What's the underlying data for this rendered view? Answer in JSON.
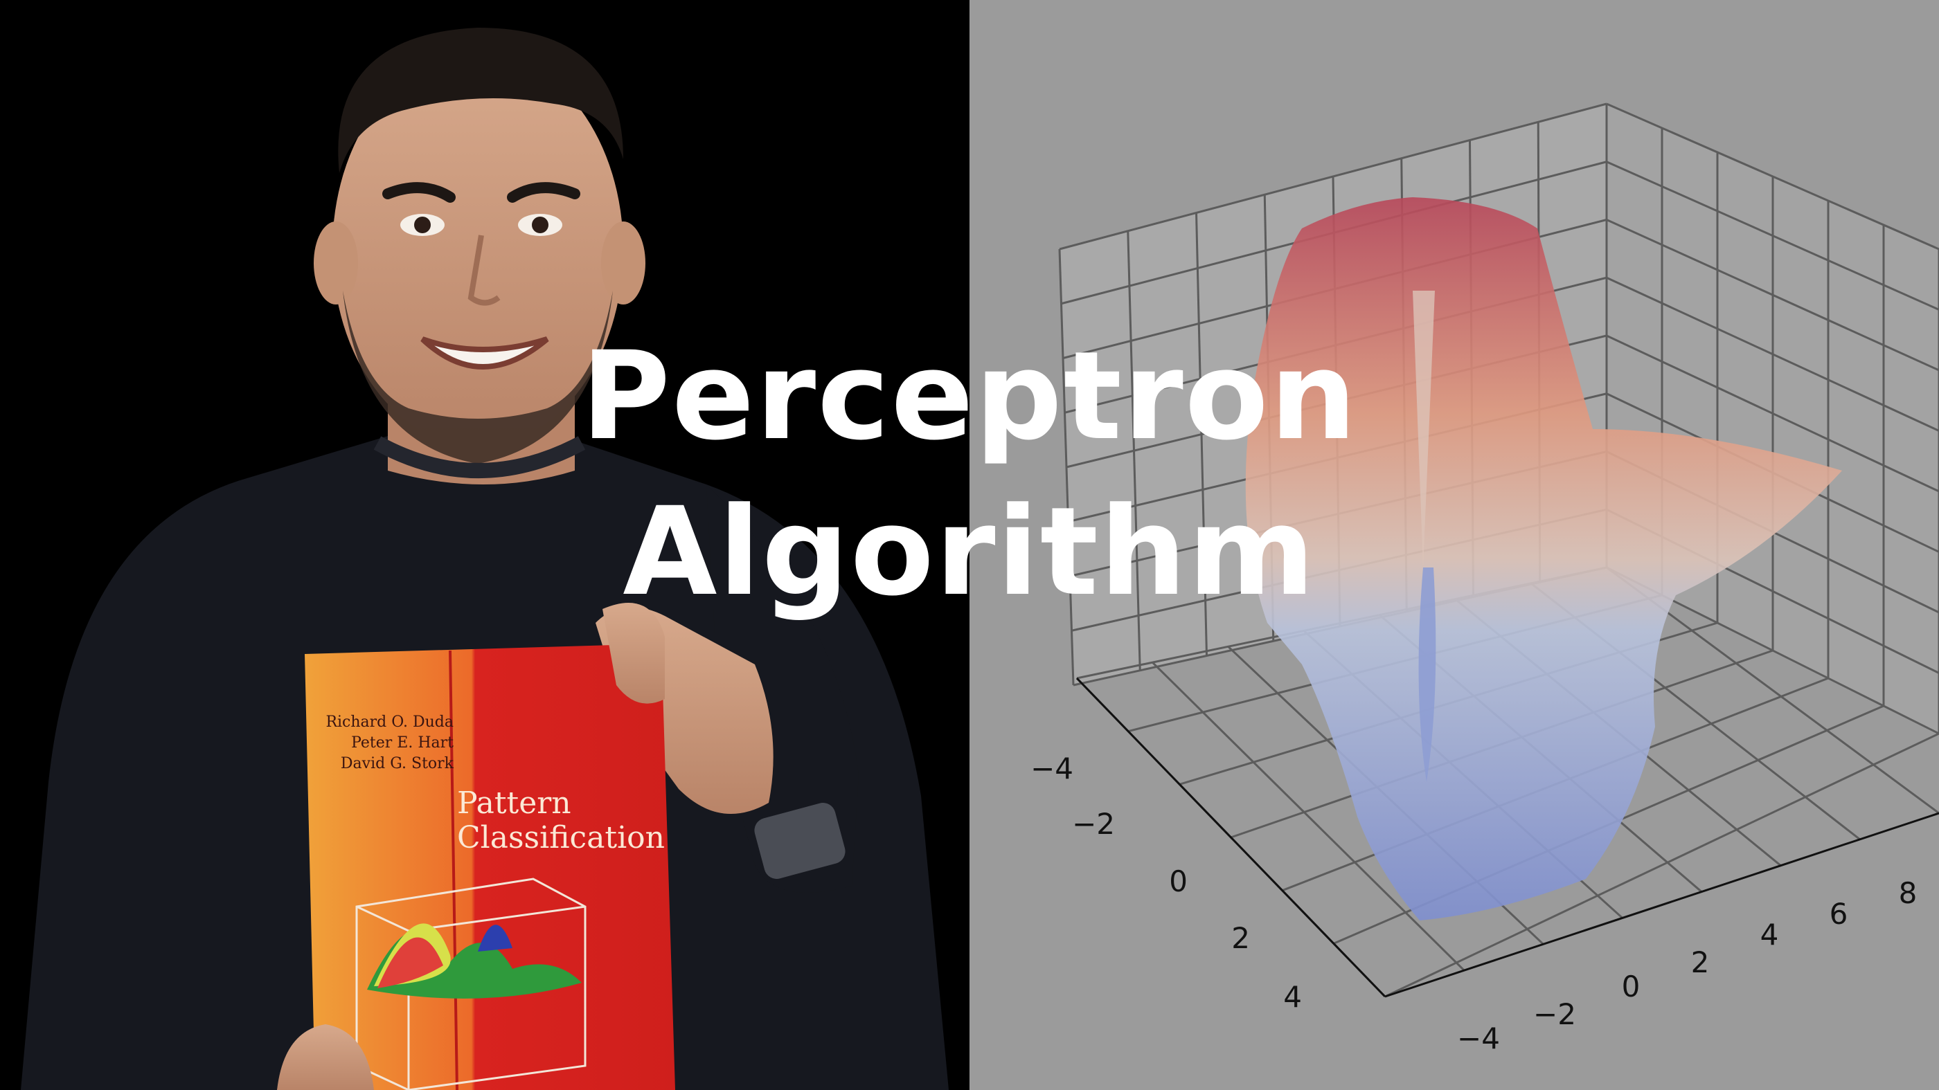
{
  "title": {
    "line1": "Perceptron",
    "line2": "Algorithm"
  },
  "book": {
    "authors": [
      "Richard O. Duda",
      "Peter E. Hart",
      "David G. Stork"
    ],
    "title_line1": "Pattern",
    "title_line2": "Classification"
  },
  "chart_data": {
    "type": "surface3d",
    "x_ticks": [
      "−4",
      "−2",
      "0",
      "2",
      "4"
    ],
    "y_ticks": [
      "−4",
      "−2",
      "0",
      "2",
      "4",
      "6",
      "8"
    ],
    "grid": true,
    "colormap": "coolwarm"
  },
  "colors": {
    "left_background": "#000000",
    "right_background": "#9b9b9b",
    "title_text": "#ffffff",
    "book_red": "#d8231f",
    "surface_high": "#b8485a",
    "surface_low": "#7f8fcf"
  }
}
